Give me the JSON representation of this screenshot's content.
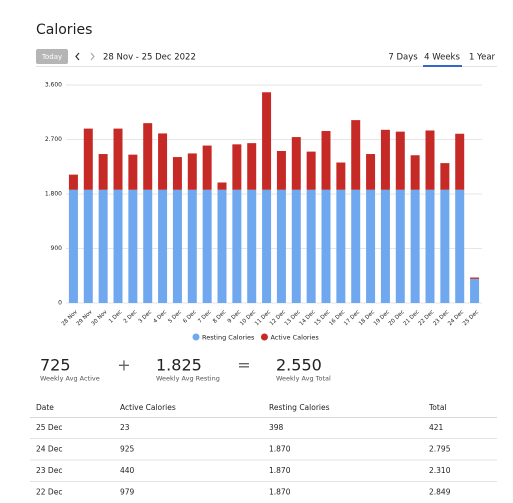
{
  "header": {
    "title": "Calories",
    "today_button": "Today",
    "date_range": "28 Nov - 25 Dec 2022",
    "tabs": [
      "7 Days",
      "4 Weeks",
      "1 Year"
    ]
  },
  "chart_data": {
    "type": "stacked-bar",
    "categories": [
      "28 Nov",
      "29 Nov",
      "30 Nov",
      "1 Dec",
      "2 Dec",
      "3 Dec",
      "4 Dec",
      "5 Dec",
      "6 Dec",
      "7 Dec",
      "8 Dec",
      "9 Dec",
      "10 Dec",
      "11 Dec",
      "12 Dec",
      "13 Dec",
      "14 Dec",
      "15 Dec",
      "16 Dec",
      "17 Dec",
      "18 Dec",
      "19 Dec",
      "20 Dec",
      "21 Dec",
      "22 Dec",
      "23 Dec",
      "24 Dec",
      "25 Dec"
    ],
    "series": [
      {
        "name": "Resting Calories",
        "color": "#6fa8ee",
        "values": [
          1870,
          1870,
          1870,
          1870,
          1870,
          1870,
          1870,
          1870,
          1870,
          1870,
          1870,
          1870,
          1870,
          1870,
          1870,
          1870,
          1870,
          1870,
          1870,
          1870,
          1870,
          1870,
          1870,
          1870,
          1870,
          1870,
          1870,
          398
        ]
      },
      {
        "name": "Active Calories",
        "color": "#c62a26",
        "values": [
          250,
          1010,
          590,
          1010,
          580,
          1100,
          930,
          540,
          600,
          730,
          120,
          750,
          770,
          1610,
          640,
          870,
          630,
          970,
          450,
          1150,
          590,
          990,
          960,
          570,
          979,
          440,
          925,
          23
        ]
      }
    ],
    "ylim": [
      0,
      3600
    ],
    "yticks": [
      0,
      900,
      {
        "value": 1800,
        "label": "1.800"
      },
      {
        "value": 2700,
        "label": "2.700"
      },
      {
        "value": 3600,
        "label": "3.600"
      }
    ],
    "grid": true
  },
  "summary": [
    {
      "value": "725",
      "label": "Weekly Avg Active"
    },
    {
      "operator": "+"
    },
    {
      "value": "1.825",
      "label": "Weekly Avg Resting"
    },
    {
      "operator": "="
    },
    {
      "value": "2.550",
      "label": "Weekly Avg Total"
    }
  ],
  "table": {
    "columns": [
      "Date",
      "Active Calories",
      "Resting Calories",
      "Total"
    ],
    "rows": [
      [
        "25 Dec",
        "23",
        "398",
        "421"
      ],
      [
        "24 Dec",
        "925",
        "1.870",
        "2.795"
      ],
      [
        "23 Dec",
        "440",
        "1.870",
        "2.310"
      ],
      [
        "22 Dec",
        "979",
        "1.870",
        "2.849"
      ]
    ]
  }
}
